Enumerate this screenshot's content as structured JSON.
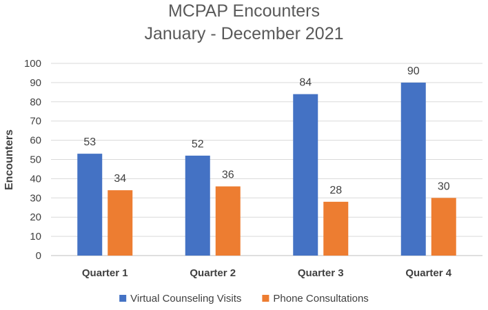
{
  "chart_data": {
    "type": "bar",
    "title": "MCPAP Encounters",
    "subtitle": "January - December 2021",
    "xlabel": "",
    "ylabel": "Encounters",
    "ylim": [
      0,
      100
    ],
    "yticks": [
      0,
      10,
      20,
      30,
      40,
      50,
      60,
      70,
      80,
      90,
      100
    ],
    "grid": true,
    "legend_position": "bottom",
    "categories": [
      "Quarter 1",
      "Quarter 2",
      "Quarter 3",
      "Quarter 4"
    ],
    "series": [
      {
        "name": "Virtual Counseling Visits",
        "color": "#4472c4",
        "values": [
          53,
          52,
          84,
          90
        ]
      },
      {
        "name": "Phone Consultations",
        "color": "#ed7d31",
        "values": [
          34,
          36,
          28,
          30
        ]
      }
    ]
  }
}
